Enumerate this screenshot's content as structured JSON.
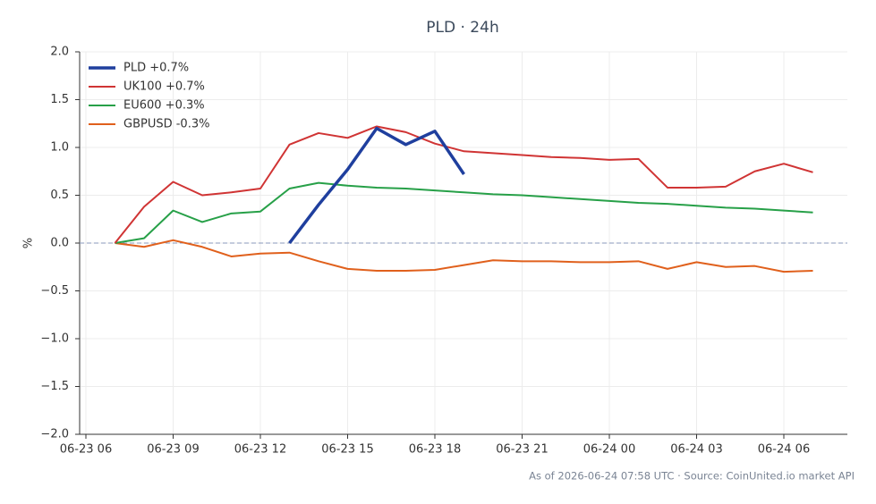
{
  "chart_data": {
    "type": "line",
    "title": "PLD · 24h",
    "y_label": "%",
    "footer": "As of 2026-06-24 07:58 UTC · Source: CoinUnited.io market API",
    "x": [
      "06-23 07",
      "06-23 08",
      "06-23 09",
      "06-23 10",
      "06-23 11",
      "06-23 12",
      "06-23 13",
      "06-23 14",
      "06-23 15",
      "06-23 16",
      "06-23 17",
      "06-23 18",
      "06-23 19",
      "06-23 20",
      "06-23 21",
      "06-23 22",
      "06-23 23",
      "06-24 00",
      "06-24 01",
      "06-24 02",
      "06-24 03",
      "06-24 04",
      "06-24 05",
      "06-24 06",
      "06-24 07"
    ],
    "series": [
      {
        "name": "PLD +0.7%",
        "color": "#1f3f9e",
        "width": 3.5,
        "values": [
          null,
          null,
          null,
          null,
          null,
          null,
          0,
          0.4,
          0.77,
          1.2,
          1.03,
          1.17,
          0.72,
          null,
          null,
          null,
          null,
          null,
          null,
          null,
          null,
          null,
          null,
          null,
          null
        ]
      },
      {
        "name": "UK100 +0.7%",
        "color": "#d03434",
        "width": 2,
        "values": [
          0,
          0.38,
          0.64,
          0.5,
          0.53,
          0.57,
          1.03,
          1.15,
          1.1,
          1.22,
          1.16,
          1.04,
          0.96,
          0.94,
          0.92,
          0.9,
          0.89,
          0.87,
          0.88,
          0.58,
          0.58,
          0.59,
          0.75,
          0.83,
          0.74
        ]
      },
      {
        "name": "EU600 +0.3%",
        "color": "#27a048",
        "width": 2,
        "values": [
          0,
          0.05,
          0.34,
          0.22,
          0.31,
          0.33,
          0.57,
          0.63,
          0.6,
          0.58,
          0.57,
          0.55,
          0.53,
          0.51,
          0.5,
          0.48,
          0.46,
          0.44,
          0.42,
          0.41,
          0.39,
          0.37,
          0.36,
          0.34,
          0.32
        ]
      },
      {
        "name": "GBPUSD -0.3%",
        "color": "#e0601c",
        "width": 2,
        "values": [
          0,
          -0.04,
          0.03,
          -0.04,
          -0.14,
          -0.11,
          -0.1,
          -0.19,
          -0.27,
          -0.29,
          -0.29,
          -0.28,
          -0.23,
          -0.18,
          -0.19,
          -0.19,
          -0.2,
          -0.2,
          -0.19,
          -0.27,
          -0.2,
          -0.25,
          -0.24,
          -0.3,
          -0.29
        ]
      }
    ],
    "xlim": [
      "06-23 06",
      "06-24 08"
    ],
    "xticks": [
      "06-23 06",
      "06-23 09",
      "06-23 12",
      "06-23 15",
      "06-23 18",
      "06-23 21",
      "06-24 00",
      "06-24 03",
      "06-24 06"
    ],
    "ylim": [
      -2,
      2
    ],
    "yticks": [
      {
        "value": -2,
        "label": "−2.0"
      },
      {
        "value": -1.5,
        "label": "−1.5"
      },
      {
        "value": -1,
        "label": "−1.0"
      },
      {
        "value": -0.5,
        "label": "−0.5"
      },
      {
        "value": 0,
        "label": "0.0"
      },
      {
        "value": 0.5,
        "label": "0.5"
      },
      {
        "value": 1,
        "label": "1.0"
      },
      {
        "value": 1.5,
        "label": "1.5"
      },
      {
        "value": 2,
        "label": "2.0"
      }
    ],
    "grid": true,
    "legend": "upper-left",
    "zero_line": true
  }
}
